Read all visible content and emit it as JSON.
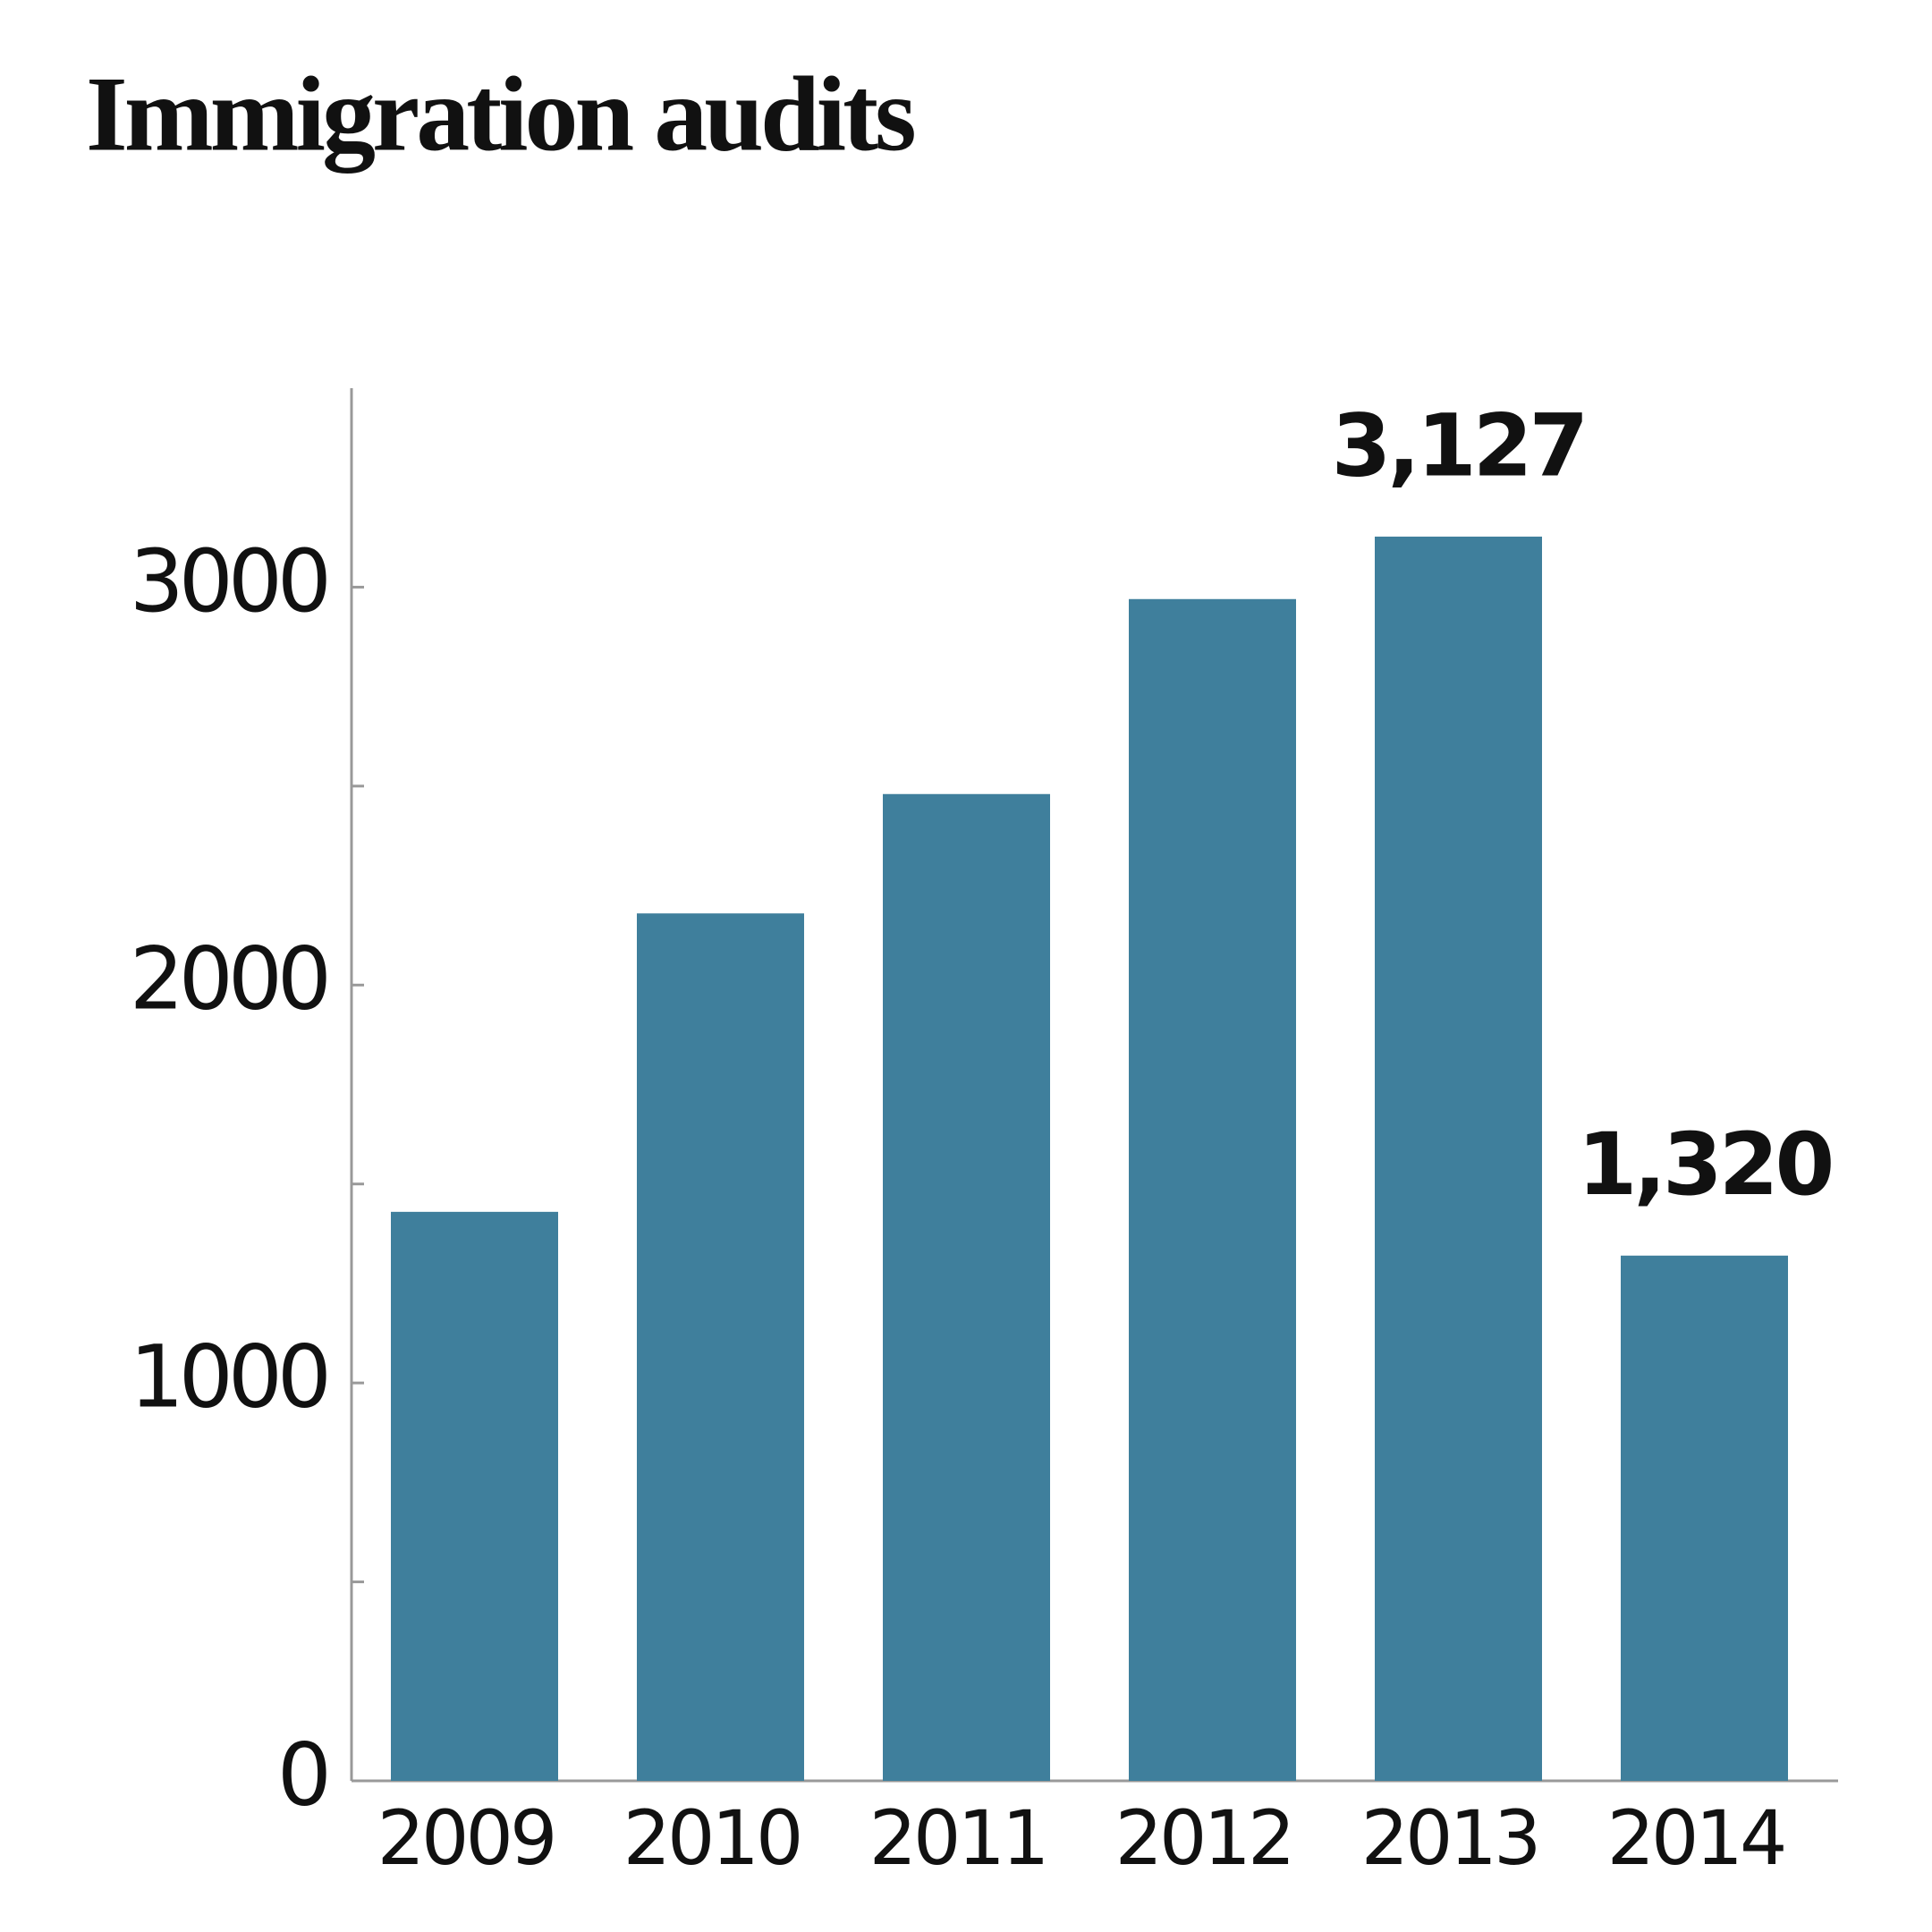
{
  "chart_data": {
    "type": "bar",
    "title": "Immigration audits",
    "categories": [
      "2009",
      "2010",
      "2011",
      "2012",
      "2013",
      "2014"
    ],
    "values": [
      1430,
      2180,
      2480,
      2970,
      3127,
      1320
    ],
    "value_labels": [
      null,
      null,
      null,
      null,
      "3,127",
      "1,320"
    ],
    "color": "#3f7f9c",
    "ylim": [
      0,
      3500
    ],
    "yticks": [
      0,
      1000,
      2000,
      3000
    ],
    "yminor_ticks": [
      500,
      1500,
      2500
    ],
    "grid": false
  }
}
